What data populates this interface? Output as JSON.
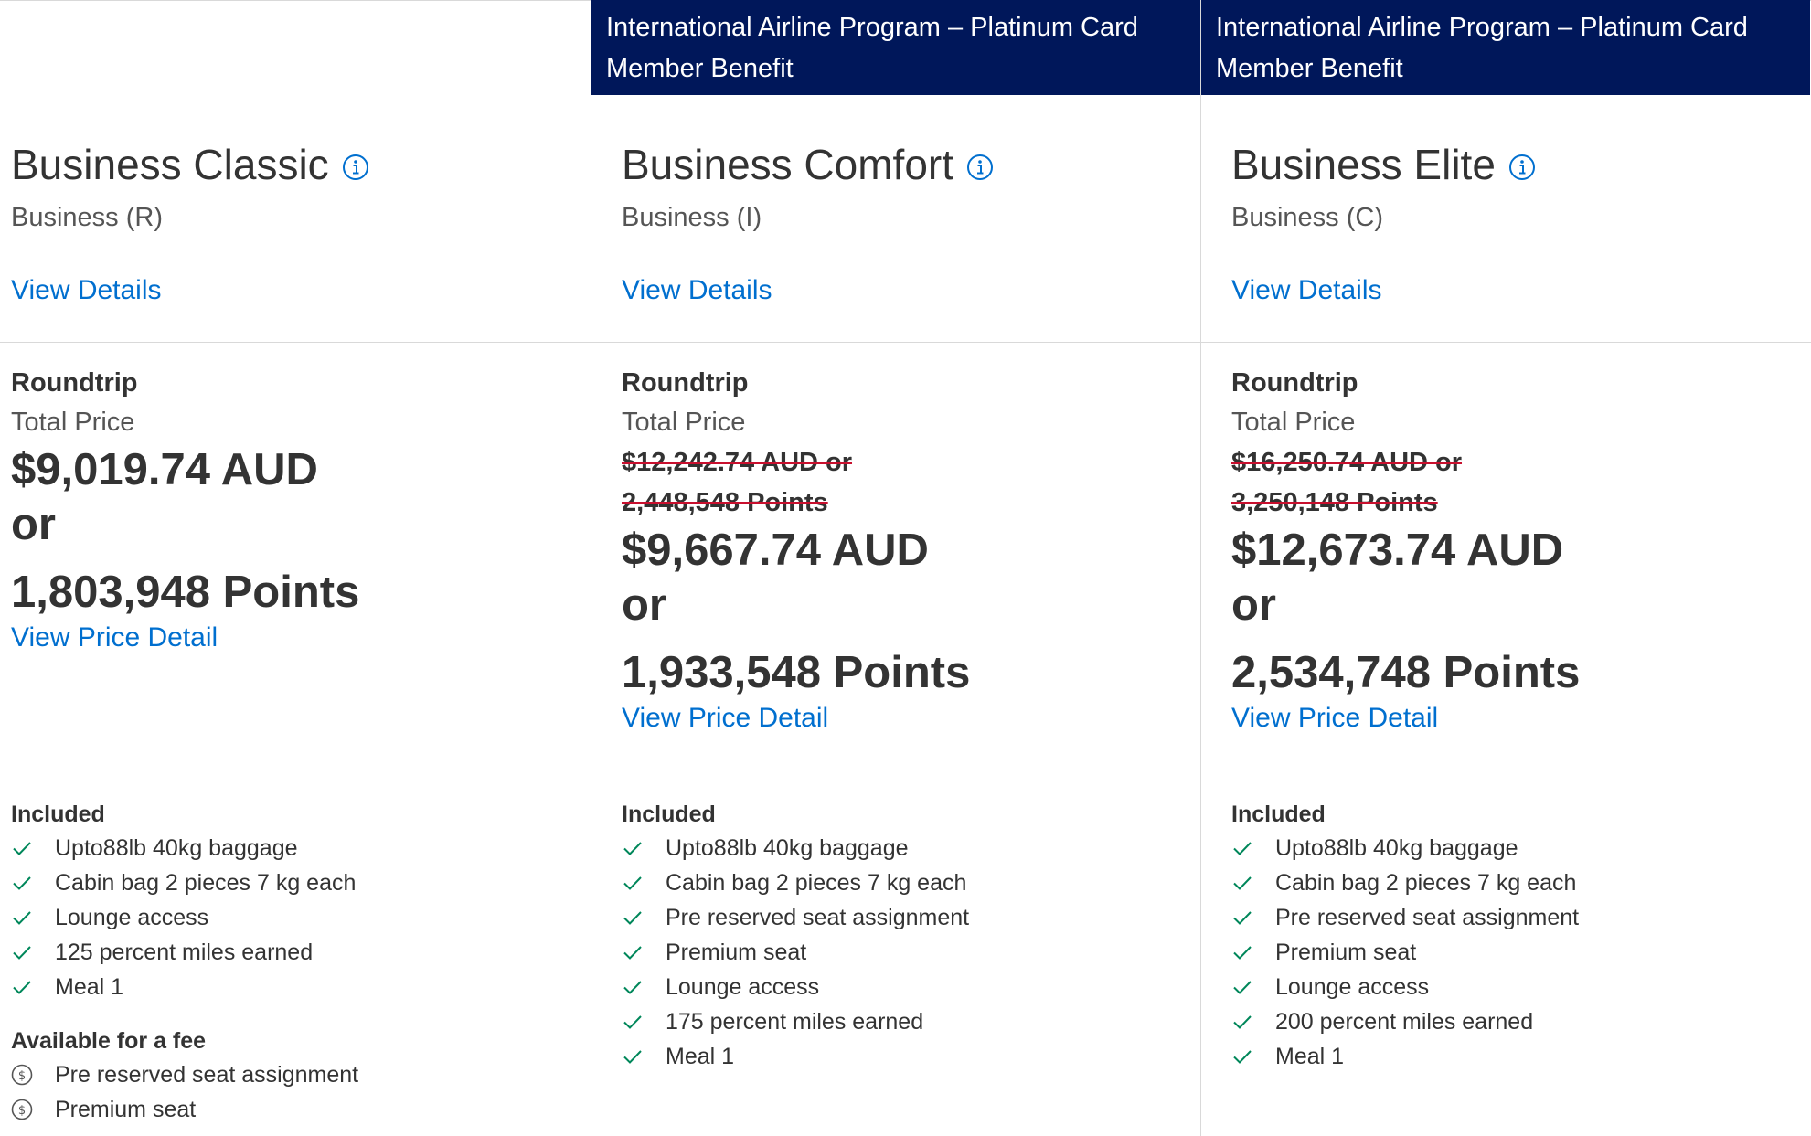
{
  "colors": {
    "banner_bg": "#00175a",
    "link": "#006fcf",
    "check": "#00875a",
    "strike_line": "#c8102e"
  },
  "icons": {
    "info": "info-icon",
    "included": "check-icon",
    "fee": "dollar-coin-icon"
  },
  "fares": [
    {
      "banner": "",
      "name": "Business Classic",
      "cabin": "Business (R)",
      "view_details": "View Details",
      "trip_type": "Roundtrip",
      "total_label": "Total Price",
      "original_price": "",
      "original_points": "",
      "price": "$9,019.74 AUD",
      "or_label": "or",
      "points": "1,803,948 Points",
      "view_price_detail": "View Price Detail",
      "included_label": "Included",
      "included": [
        "Upto88lb 40kg baggage",
        "Cabin bag 2 pieces 7 kg each",
        "Lounge access",
        "125 percent miles earned",
        "Meal 1"
      ],
      "fee_label": "Available for a fee",
      "fee_items": [
        "Pre reserved seat assignment",
        "Premium seat"
      ]
    },
    {
      "banner": "International Airline Program – Platinum Card Member Benefit",
      "name": "Business Comfort",
      "cabin": "Business (I)",
      "view_details": "View Details",
      "trip_type": "Roundtrip",
      "total_label": "Total Price",
      "original_price": "$12,242.74 AUD or",
      "original_points": "2,448,548 Points",
      "price": "$9,667.74 AUD",
      "or_label": "or",
      "points": "1,933,548 Points",
      "view_price_detail": "View Price Detail",
      "included_label": "Included",
      "included": [
        "Upto88lb 40kg baggage",
        "Cabin bag 2 pieces 7 kg each",
        "Pre reserved seat assignment",
        "Premium seat",
        "Lounge access",
        "175 percent miles earned",
        "Meal 1"
      ],
      "fee_label": "",
      "fee_items": []
    },
    {
      "banner": "International Airline Program – Platinum Card Member Benefit",
      "name": "Business Elite",
      "cabin": "Business (C)",
      "view_details": "View Details",
      "trip_type": "Roundtrip",
      "total_label": "Total Price",
      "original_price": "$16,250.74 AUD or",
      "original_points": "3,250,148 Points",
      "price": "$12,673.74 AUD",
      "or_label": "or",
      "points": "2,534,748 Points",
      "view_price_detail": "View Price Detail",
      "included_label": "Included",
      "included": [
        "Upto88lb 40kg baggage",
        "Cabin bag 2 pieces 7 kg each",
        "Pre reserved seat assignment",
        "Premium seat",
        "Lounge access",
        "200 percent miles earned",
        "Meal 1"
      ],
      "fee_label": "",
      "fee_items": []
    }
  ]
}
